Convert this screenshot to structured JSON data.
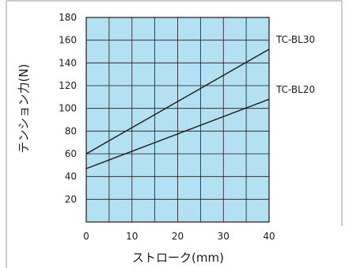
{
  "chart_data": {
    "type": "line",
    "xlabel": "ストローク(mm)",
    "ylabel": "テンション力(N)",
    "xlim": [
      0,
      40
    ],
    "ylim": [
      0,
      180
    ],
    "x_ticks": [
      0,
      10,
      20,
      30,
      40
    ],
    "y_ticks": [
      20,
      40,
      60,
      80,
      100,
      120,
      140,
      160,
      180
    ],
    "grid": true,
    "legend": "inline-right",
    "colors": {
      "plot_background": "#b3e0f2",
      "grid": "#231815",
      "line": "#231815",
      "frame": "#9a9a9a"
    },
    "series": [
      {
        "name": "TC-BL30",
        "x": [
          0,
          40
        ],
        "y": [
          60,
          152
        ]
      },
      {
        "name": "TC-BL20",
        "x": [
          0,
          40
        ],
        "y": [
          47,
          108
        ]
      }
    ]
  }
}
